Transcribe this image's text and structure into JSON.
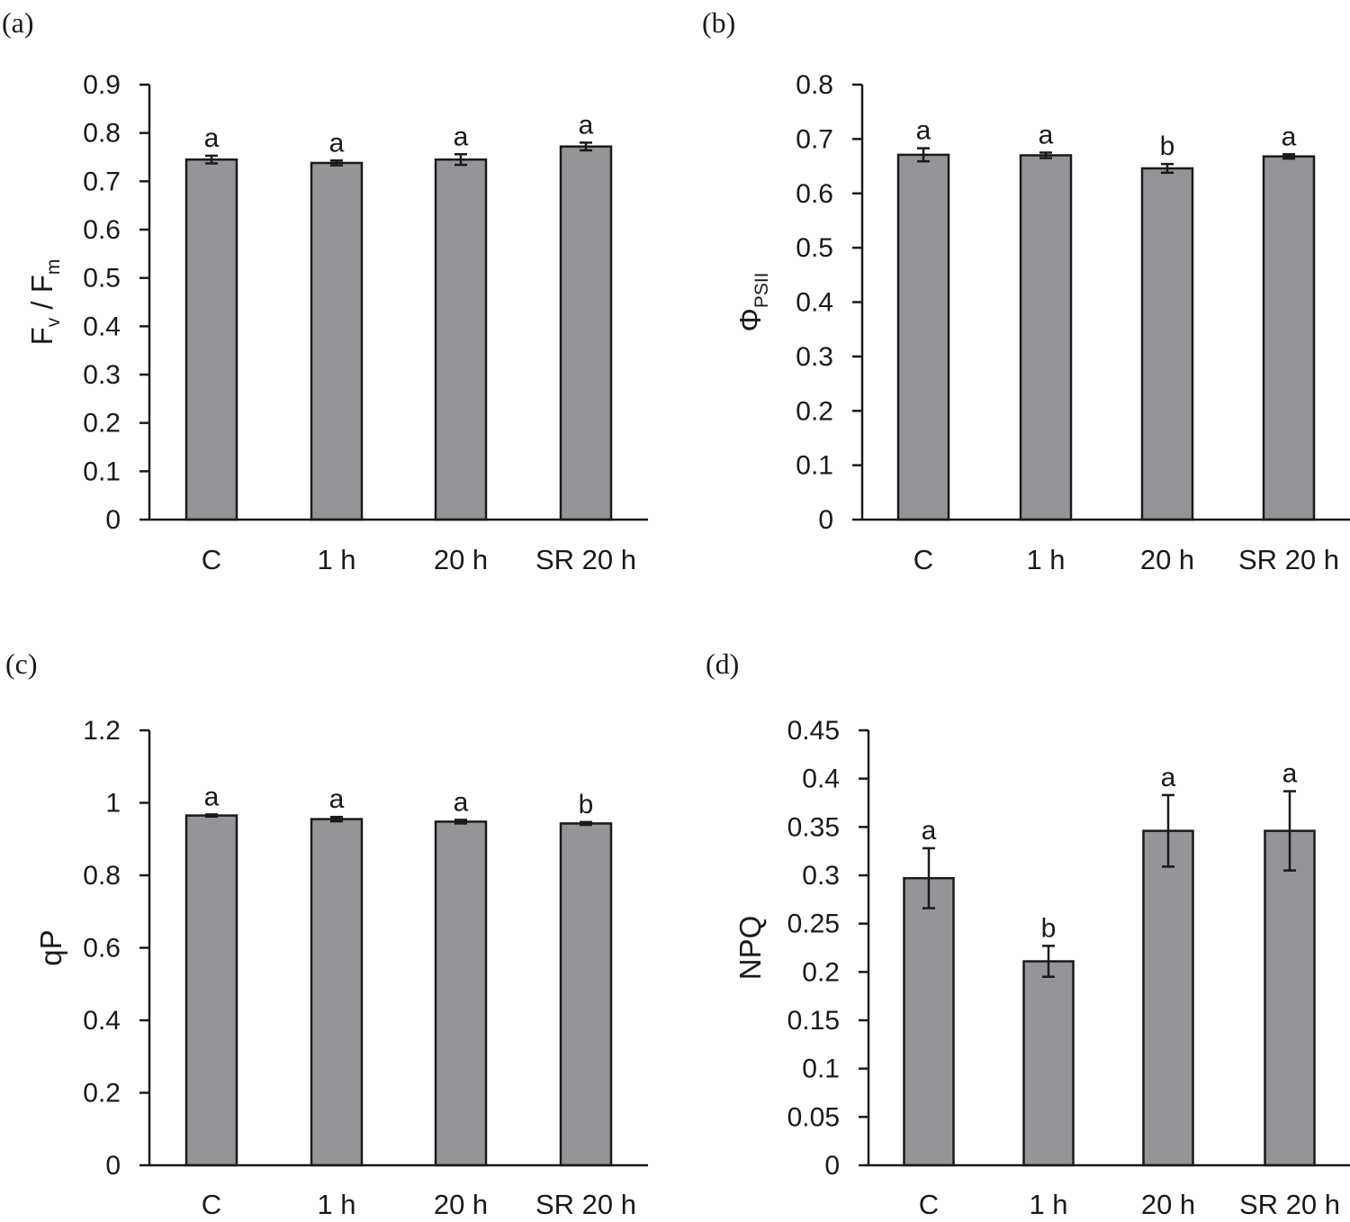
{
  "chart_data": [
    {
      "panel": "(a)",
      "type": "bar",
      "title": "",
      "ylabel": {
        "main": "F",
        "sub1": "v",
        "mid": " / F",
        "sub2": "m",
        "full": "Fv / Fm"
      },
      "xlabel": "",
      "categories": [
        "C",
        "1 h",
        "20 h",
        "SR 20 h"
      ],
      "values": [
        0.745,
        0.738,
        0.745,
        0.772
      ],
      "errors": [
        0.008,
        0.005,
        0.011,
        0.008
      ],
      "significance": [
        "a",
        "a",
        "a",
        "a"
      ],
      "ylim": [
        0,
        0.9
      ],
      "yticks": [
        "0",
        "0.1",
        "0.2",
        "0.3",
        "0.4",
        "0.5",
        "0.6",
        "0.7",
        "0.8",
        "0.9"
      ],
      "bar_color": "#939598"
    },
    {
      "panel": "(b)",
      "type": "bar",
      "title": "",
      "ylabel": {
        "main": "Φ",
        "sub1": "PSII",
        "full": "ΦPSII"
      },
      "xlabel": "",
      "categories": [
        "C",
        "1 h",
        "20 h",
        "SR 20 h"
      ],
      "values": [
        0.671,
        0.67,
        0.646,
        0.668
      ],
      "errors": [
        0.012,
        0.005,
        0.008,
        0.004
      ],
      "significance": [
        "a",
        "a",
        "b",
        "a"
      ],
      "ylim": [
        0,
        0.8
      ],
      "yticks": [
        "0",
        "0.1",
        "0.2",
        "0.3",
        "0.4",
        "0.5",
        "0.6",
        "0.7",
        "0.8"
      ],
      "bar_color": "#939598"
    },
    {
      "panel": "(c)",
      "type": "bar",
      "title": "",
      "ylabel": {
        "main": "qP",
        "full": "qP"
      },
      "xlabel": "",
      "categories": [
        "C",
        "1 h",
        "20 h",
        "SR 20 h"
      ],
      "values": [
        0.965,
        0.955,
        0.948,
        0.943
      ],
      "errors": [
        0.003,
        0.006,
        0.005,
        0.004
      ],
      "significance": [
        "a",
        "a",
        "a",
        "b"
      ],
      "ylim": [
        0,
        1.2
      ],
      "yticks": [
        "0",
        "0.2",
        "0.4",
        "0.6",
        "0.8",
        "1",
        "1.2"
      ],
      "bar_color": "#939598"
    },
    {
      "panel": "(d)",
      "type": "bar",
      "title": "",
      "ylabel": {
        "main": "NPQ",
        "full": "NPQ"
      },
      "xlabel": "",
      "categories": [
        "C",
        "1 h",
        "20 h",
        "SR 20 h"
      ],
      "values": [
        0.297,
        0.211,
        0.346,
        0.346
      ],
      "errors": [
        0.031,
        0.016,
        0.037,
        0.041
      ],
      "significance": [
        "a",
        "b",
        "a",
        "a"
      ],
      "ylim": [
        0,
        0.45
      ],
      "yticks": [
        "0",
        "0.05",
        "0.1",
        "0.15",
        "0.2",
        "0.25",
        "0.3",
        "0.35",
        "0.4",
        "0.45"
      ],
      "bar_color": "#939598"
    }
  ]
}
